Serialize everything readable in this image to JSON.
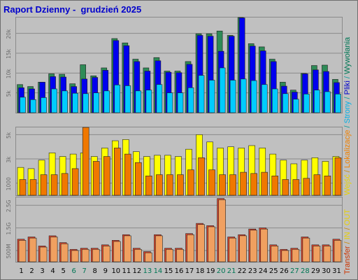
{
  "title": "Raport Dzienny -  grudzień 2025",
  "legend_right": {
    "part1": [
      {
        "text": "Transfer",
        "color": "#cc3300"
      },
      {
        "text": " / ",
        "color": "#cc8800"
      },
      {
        "text": "IN",
        "color": "#e8d000"
      },
      {
        "text": " / ",
        "color": "#cc8800"
      },
      {
        "text": "OUT",
        "color": "#e8d000"
      }
    ],
    "part2": [
      {
        "text": "Wejść",
        "color": "#e8d000"
      },
      {
        "text": " / ",
        "color": "#cc8800"
      },
      {
        "text": "Lokalizacje",
        "color": "#f08000"
      }
    ],
    "part3": [
      {
        "text": " / ",
        "color": "#009999"
      },
      {
        "text": "Strony",
        "color": "#00b0e8"
      },
      {
        "text": " / ",
        "color": "#009999"
      },
      {
        "text": "Pliki",
        "color": "#0000cc"
      },
      {
        "text": " / ",
        "color": "#009999"
      },
      {
        "text": "Wywołania",
        "color": "#007755"
      }
    ]
  },
  "chart_data": {
    "type": "bar",
    "categories": [
      "1",
      "2",
      "3",
      "4",
      "5",
      "6",
      "7",
      "8",
      "9",
      "10",
      "11",
      "12",
      "13",
      "14",
      "15",
      "16",
      "17",
      "18",
      "19",
      "20",
      "21",
      "22",
      "23",
      "24",
      "25",
      "26",
      "27",
      "28",
      "29",
      "30",
      "31"
    ],
    "weekend_days": [
      "6",
      "7",
      "13",
      "14",
      "20",
      "21",
      "27",
      "28"
    ],
    "colors": {
      "hits": "#2e8b57",
      "files": "#0000ee",
      "pages": "#00ccff",
      "visits": "#ffff00",
      "sites": "#f07800",
      "transfer": "#e8442a",
      "weekend_label": "#007755",
      "weekday_label": "#000000"
    },
    "panels": [
      {
        "name": "hits-files-pages",
        "ylim": [
          0,
          24000
        ],
        "yticks": [
          {
            "value": 5000,
            "label": "5k"
          },
          {
            "value": 10000,
            "label": "10k"
          },
          {
            "value": 15000,
            "label": "15k"
          },
          {
            "value": 20000,
            "label": "20k"
          }
        ],
        "series": [
          {
            "name": "Wywołania",
            "values": [
              7100,
              6600,
              7700,
              9800,
              9700,
              7300,
              12100,
              9300,
              11300,
              18700,
              17600,
              13500,
              11300,
              13900,
              10500,
              10500,
              12900,
              19900,
              19900,
              20600,
              19500,
              24000,
              17400,
              16600,
              13500,
              7700,
              5700,
              9900,
              11900,
              12000,
              8400
            ]
          },
          {
            "name": "Pliki",
            "values": [
              6300,
              6000,
              7700,
              9100,
              9000,
              6600,
              8500,
              8900,
              10700,
              18200,
              16900,
              12900,
              10500,
              13100,
              10200,
              10100,
              12200,
              19500,
              19300,
              15500,
              19300,
              23900,
              16800,
              15600,
              12900,
              6700,
              5200,
              9800,
              10800,
              10400,
              7600
            ]
          },
          {
            "name": "Strony",
            "values": [
              3900,
              3300,
              3800,
              6000,
              5500,
              4900,
              4800,
              5000,
              5500,
              7000,
              6800,
              5500,
              5700,
              7100,
              5000,
              5000,
              6300,
              9400,
              8200,
              11300,
              8200,
              8500,
              8100,
              7100,
              6000,
              4800,
              3400,
              4700,
              5700,
              5300,
              4700
            ]
          }
        ]
      },
      {
        "name": "visits-sites",
        "ylim": [
          0,
          5600
        ],
        "yticks": [
          {
            "value": 1000,
            "label": "1000"
          },
          {
            "value": 3000,
            "label": "3k"
          },
          {
            "value": 5000,
            "label": "5k"
          }
        ],
        "series": [
          {
            "name": "Wejść",
            "values": [
              2300,
              2200,
              2900,
              3500,
              3200,
              3400,
              3500,
              3200,
              3900,
              4500,
              4600,
              3600,
              3200,
              3300,
              3300,
              3200,
              3800,
              5000,
              4400,
              3900,
              4000,
              3900,
              4100,
              3900,
              3400,
              2900,
              2600,
              2900,
              3100,
              2800,
              3200
            ]
          },
          {
            "name": "Lokalizacje",
            "values": [
              1300,
              1300,
              1700,
              1700,
              1800,
              2200,
              5600,
              2800,
              3200,
              3900,
              3400,
              2700,
              1600,
              1700,
              1700,
              1700,
              2100,
              3100,
              2100,
              1700,
              1700,
              1900,
              1800,
              1900,
              1600,
              1300,
              1300,
              1400,
              1700,
              1600,
              3100
            ]
          }
        ]
      },
      {
        "name": "transfer",
        "ylim": [
          0,
          2.85
        ],
        "yticks": [
          {
            "value": 0.5,
            "label": "500M"
          },
          {
            "value": 1.5,
            "label": "1.5G"
          },
          {
            "value": 2.5,
            "label": "2.5G"
          }
        ],
        "series": [
          {
            "name": "Transfer",
            "values": [
              1.0,
              1.1,
              0.7,
              1.15,
              0.85,
              0.55,
              0.6,
              0.6,
              0.75,
              0.95,
              1.2,
              0.6,
              0.45,
              1.2,
              0.6,
              0.6,
              1.25,
              1.7,
              1.6,
              2.8,
              1.1,
              1.2,
              1.45,
              1.5,
              0.75,
              0.55,
              0.6,
              1.1,
              0.75,
              0.75,
              1.0
            ]
          },
          {
            "name": "IN",
            "values": [
              0.95,
              1.05,
              0.65,
              1.1,
              0.8,
              0.5,
              0.55,
              0.55,
              0.7,
              0.9,
              1.15,
              0.55,
              0.4,
              1.15,
              0.55,
              0.55,
              1.2,
              1.65,
              1.55,
              2.75,
              1.05,
              1.15,
              1.4,
              1.45,
              0.7,
              0.5,
              0.55,
              1.05,
              0.7,
              0.7,
              0.95
            ]
          }
        ]
      }
    ]
  }
}
